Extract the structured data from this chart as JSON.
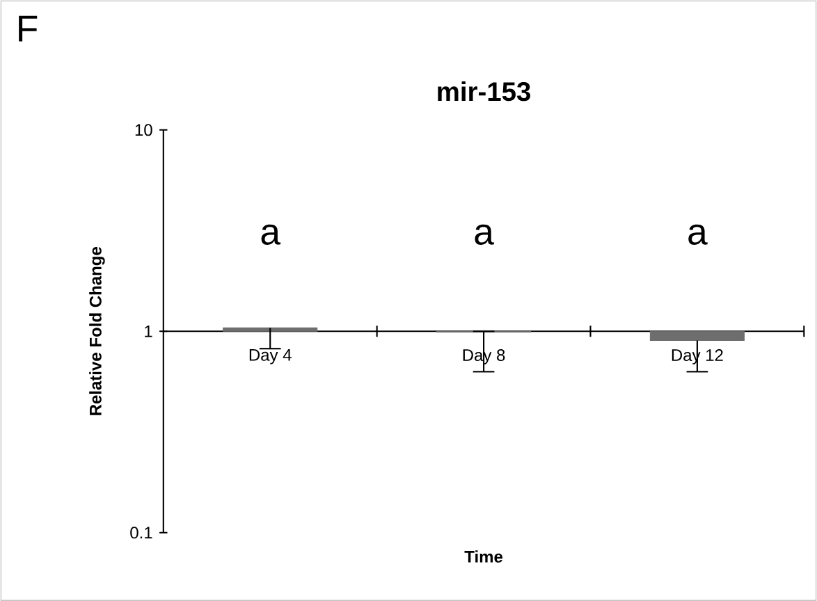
{
  "chart_data": {
    "type": "bar",
    "title": "mir-153",
    "xlabel": "Time",
    "ylabel": "Relative Fold Change",
    "categories": [
      "Day 4",
      "Day 8",
      "Day 12"
    ],
    "base": [
      1,
      1,
      1
    ],
    "values": [
      0.04,
      -0.01,
      -0.1
    ],
    "errors": [
      [
        0.82,
        1.04
      ],
      [
        0.63,
        1.0
      ],
      [
        0.63,
        0.9
      ]
    ],
    "color": "#6e6e6e",
    "log": true,
    "ylim": [
      0.1,
      10
    ],
    "yticks": [
      0.1,
      1,
      10
    ],
    "grid": false,
    "annotations": [
      "F",
      "a",
      "a",
      "a"
    ]
  }
}
